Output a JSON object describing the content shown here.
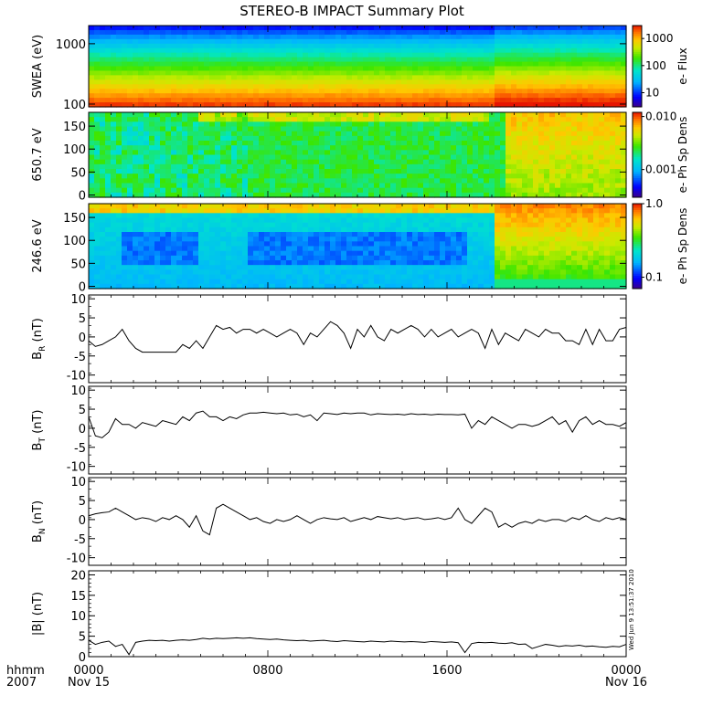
{
  "title": "STEREO-B IMPACT Summary Plot",
  "time_axis": {
    "corner_labels": [
      "hhmm",
      "2007"
    ],
    "ticks": [
      {
        "t": 0,
        "lines": [
          "0000",
          "Nov 15"
        ]
      },
      {
        "t": 8,
        "lines": [
          "0800"
        ]
      },
      {
        "t": 16,
        "lines": [
          "1600"
        ]
      },
      {
        "t": 24,
        "lines": [
          "0000",
          "Nov 16"
        ]
      }
    ],
    "range_hours": [
      0,
      24
    ]
  },
  "stamp": "Wed Jun  9 13:51:37 2010",
  "chart_data": [
    {
      "type": "heatmap",
      "id": "swea",
      "ylabel": "SWEA (eV)",
      "yscale": "log",
      "ylim": [
        90,
        2000
      ],
      "yticks": [
        {
          "v": 1000,
          "label": "1000"
        },
        {
          "v": 100,
          "label": "100"
        }
      ],
      "colorbar": {
        "label": "e- Flux",
        "scale": "log",
        "range": [
          3,
          3000
        ],
        "ticks": [
          {
            "v": 1000,
            "label": "1000"
          },
          {
            "v": 100,
            "label": "100"
          },
          {
            "v": 10,
            "label": "10"
          }
        ]
      }
    },
    {
      "type": "heatmap",
      "id": "pad650",
      "ylabel": "650.7 eV",
      "yscale": "linear",
      "ylim": [
        -5,
        180
      ],
      "yticks": [
        {
          "v": 0,
          "label": "0"
        },
        {
          "v": 50,
          "label": "50"
        },
        {
          "v": 100,
          "label": "100"
        },
        {
          "v": 150,
          "label": "150"
        }
      ],
      "colorbar": {
        "label": "e- Ph Sp Dens",
        "scale": "log",
        "range": [
          0.0003,
          0.012
        ],
        "ticks": [
          {
            "v": 0.01,
            "label": "0.010"
          },
          {
            "v": 0.001,
            "label": "0.001"
          }
        ]
      }
    },
    {
      "type": "heatmap",
      "id": "pad246",
      "ylabel": "246.6 eV",
      "yscale": "linear",
      "ylim": [
        -5,
        180
      ],
      "yticks": [
        {
          "v": 0,
          "label": "0"
        },
        {
          "v": 50,
          "label": "50"
        },
        {
          "v": 100,
          "label": "100"
        },
        {
          "v": 150,
          "label": "150"
        }
      ],
      "colorbar": {
        "label": "e- Ph Sp Dens",
        "scale": "log",
        "range": [
          0.07,
          1.0
        ],
        "ticks": [
          {
            "v": 1.0,
            "label": "1.0"
          },
          {
            "v": 0.1,
            "label": "0.1"
          }
        ]
      }
    },
    {
      "type": "line",
      "id": "br",
      "ylabel": "B",
      "ylabel_sub": "R",
      "ylabel_unit": "(nT)",
      "ylim": [
        -12,
        11
      ],
      "yticks": [
        {
          "v": 10,
          "label": "10"
        },
        {
          "v": 5,
          "label": "5"
        },
        {
          "v": 0,
          "label": "0"
        },
        {
          "v": -5,
          "label": "-5"
        },
        {
          "v": -10,
          "label": "-10"
        }
      ],
      "x": [
        0,
        0.3,
        0.6,
        0.9,
        1.2,
        1.5,
        1.8,
        2.1,
        2.4,
        2.7,
        3,
        3.3,
        3.6,
        3.9,
        4.2,
        4.5,
        4.8,
        5.1,
        5.4,
        5.7,
        6,
        6.3,
        6.6,
        6.9,
        7.2,
        7.5,
        7.8,
        8.1,
        8.4,
        8.7,
        9,
        9.3,
        9.6,
        9.9,
        10.2,
        10.5,
        10.8,
        11.1,
        11.4,
        11.7,
        12,
        12.3,
        12.6,
        12.9,
        13.2,
        13.5,
        13.8,
        14.1,
        14.4,
        14.7,
        15,
        15.3,
        15.6,
        15.9,
        16.2,
        16.5,
        16.8,
        17.1,
        17.4,
        17.7,
        18,
        18.3,
        18.6,
        18.9,
        19.2,
        19.5,
        19.8,
        20.1,
        20.4,
        20.7,
        21,
        21.3,
        21.6,
        21.9,
        22.2,
        22.5,
        22.8,
        23.1,
        23.4,
        23.7,
        24
      ],
      "y": [
        -1,
        -2.5,
        -2,
        -1,
        0,
        2,
        -1,
        -3,
        -4,
        -4,
        -4,
        -4,
        -4,
        -4,
        -2,
        -3,
        -1,
        -3,
        0,
        3,
        2,
        2.5,
        1,
        2,
        2,
        1,
        2,
        1,
        0,
        1,
        2,
        1,
        -2,
        1,
        0,
        2,
        4,
        3,
        1,
        -3,
        2,
        0,
        3,
        0,
        -1,
        2,
        1,
        2,
        3,
        2,
        0,
        2,
        0,
        1,
        2,
        0,
        1,
        2,
        1,
        -3,
        2,
        -2,
        1,
        0,
        -1,
        2,
        1,
        0,
        2,
        1,
        1,
        -1,
        -1,
        -2,
        2,
        -2,
        2,
        -1,
        -1,
        2,
        2.5
      ]
    },
    {
      "type": "line",
      "id": "bt",
      "ylabel": "B",
      "ylabel_sub": "T",
      "ylabel_unit": "(nT)",
      "ylim": [
        -12,
        11
      ],
      "yticks": [
        {
          "v": 10,
          "label": "10"
        },
        {
          "v": 5,
          "label": "5"
        },
        {
          "v": 0,
          "label": "0"
        },
        {
          "v": -5,
          "label": "-5"
        },
        {
          "v": -10,
          "label": "-10"
        }
      ],
      "x": [
        0,
        0.3,
        0.6,
        0.9,
        1.2,
        1.5,
        1.8,
        2.1,
        2.4,
        2.7,
        3,
        3.3,
        3.6,
        3.9,
        4.2,
        4.5,
        4.8,
        5.1,
        5.4,
        5.7,
        6,
        6.3,
        6.6,
        6.9,
        7.2,
        7.5,
        7.8,
        8.1,
        8.4,
        8.7,
        9,
        9.3,
        9.6,
        9.9,
        10.2,
        10.5,
        10.8,
        11.1,
        11.4,
        11.7,
        12,
        12.3,
        12.6,
        12.9,
        13.2,
        13.5,
        13.8,
        14.1,
        14.4,
        14.7,
        15,
        15.3,
        15.6,
        15.9,
        16.2,
        16.5,
        16.8,
        17.1,
        17.4,
        17.7,
        18,
        18.3,
        18.6,
        18.9,
        19.2,
        19.5,
        19.8,
        20.1,
        20.4,
        20.7,
        21,
        21.3,
        21.6,
        21.9,
        22.2,
        22.5,
        22.8,
        23.1,
        23.4,
        23.7,
        24
      ],
      "y": [
        3,
        -2,
        -2.5,
        -1,
        2.5,
        1,
        1,
        0,
        1.5,
        1,
        0.5,
        2,
        1.5,
        1,
        3,
        2,
        4,
        4.5,
        3,
        3,
        2,
        3,
        2.5,
        3.5,
        4,
        4,
        4.2,
        4,
        3.8,
        4,
        3.5,
        3.7,
        3,
        3.5,
        2,
        4,
        3.8,
        3.6,
        4,
        3.8,
        4,
        4,
        3.5,
        3.8,
        3.7,
        3.6,
        3.7,
        3.5,
        3.8,
        3.6,
        3.7,
        3.5,
        3.7,
        3.6,
        3.6,
        3.5,
        3.7,
        0,
        2,
        1,
        3,
        2,
        1,
        0,
        1,
        1,
        0.5,
        1,
        2,
        3,
        1,
        2,
        -1,
        2,
        3,
        1,
        2,
        1,
        1,
        0.5,
        1.5
      ]
    },
    {
      "type": "line",
      "id": "bn",
      "ylabel": "B",
      "ylabel_sub": "N",
      "ylabel_unit": "(nT)",
      "ylim": [
        -12,
        11
      ],
      "yticks": [
        {
          "v": 10,
          "label": "10"
        },
        {
          "v": 5,
          "label": "5"
        },
        {
          "v": 0,
          "label": "0"
        },
        {
          "v": -5,
          "label": "-5"
        },
        {
          "v": -10,
          "label": "-10"
        }
      ],
      "x": [
        0,
        0.3,
        0.6,
        0.9,
        1.2,
        1.5,
        1.8,
        2.1,
        2.4,
        2.7,
        3,
        3.3,
        3.6,
        3.9,
        4.2,
        4.5,
        4.8,
        5.1,
        5.4,
        5.7,
        6,
        6.3,
        6.6,
        6.9,
        7.2,
        7.5,
        7.8,
        8.1,
        8.4,
        8.7,
        9,
        9.3,
        9.6,
        9.9,
        10.2,
        10.5,
        10.8,
        11.1,
        11.4,
        11.7,
        12,
        12.3,
        12.6,
        12.9,
        13.2,
        13.5,
        13.8,
        14.1,
        14.4,
        14.7,
        15,
        15.3,
        15.6,
        15.9,
        16.2,
        16.5,
        16.8,
        17.1,
        17.4,
        17.7,
        18,
        18.3,
        18.6,
        18.9,
        19.2,
        19.5,
        19.8,
        20.1,
        20.4,
        20.7,
        21,
        21.3,
        21.6,
        21.9,
        22.2,
        22.5,
        22.8,
        23.1,
        23.4,
        23.7,
        24
      ],
      "y": [
        1,
        1.5,
        1.8,
        2,
        3,
        2,
        1,
        0,
        0.5,
        0.2,
        -0.5,
        0.5,
        0,
        1,
        0,
        -2,
        1,
        -3,
        -4,
        3,
        4,
        3,
        2,
        1,
        0,
        0.5,
        -0.5,
        -1,
        0,
        -0.5,
        0,
        1,
        0,
        -1,
        0,
        0.5,
        0.2,
        0,
        0.5,
        -0.5,
        0,
        0.5,
        0,
        0.8,
        0.5,
        0.2,
        0.5,
        0,
        0.3,
        0.5,
        0,
        0.2,
        0.5,
        0,
        0.5,
        3,
        0,
        -1,
        1,
        3,
        2,
        -2,
        -1,
        -2,
        -1,
        -0.5,
        -1,
        0,
        -0.5,
        0,
        0,
        -0.5,
        0.5,
        0,
        1,
        0,
        -0.5,
        0.5,
        0,
        0.5,
        0
      ]
    },
    {
      "type": "line",
      "id": "bmag",
      "ylabel": "|B| (nT)",
      "ylim": [
        0,
        21
      ],
      "yticks": [
        {
          "v": 20,
          "label": "20"
        },
        {
          "v": 15,
          "label": "15"
        },
        {
          "v": 10,
          "label": "10"
        },
        {
          "v": 5,
          "label": "5"
        },
        {
          "v": 0,
          "label": "0"
        }
      ],
      "x": [
        0,
        0.3,
        0.6,
        0.9,
        1.2,
        1.5,
        1.8,
        2.1,
        2.4,
        2.7,
        3,
        3.3,
        3.6,
        3.9,
        4.2,
        4.5,
        4.8,
        5.1,
        5.4,
        5.7,
        6,
        6.3,
        6.6,
        6.9,
        7.2,
        7.5,
        7.8,
        8.1,
        8.4,
        8.7,
        9,
        9.3,
        9.6,
        9.9,
        10.2,
        10.5,
        10.8,
        11.1,
        11.4,
        11.7,
        12,
        12.3,
        12.6,
        12.9,
        13.2,
        13.5,
        13.8,
        14.1,
        14.4,
        14.7,
        15,
        15.3,
        15.6,
        15.9,
        16.2,
        16.5,
        16.8,
        17.1,
        17.4,
        17.7,
        18,
        18.3,
        18.6,
        18.9,
        19.2,
        19.5,
        19.8,
        20.1,
        20.4,
        20.7,
        21,
        21.3,
        21.6,
        21.9,
        22.2,
        22.5,
        22.8,
        23.1,
        23.4,
        23.7,
        24
      ],
      "y": [
        4,
        3,
        3.5,
        3.8,
        2.5,
        3,
        0.5,
        3.5,
        3.8,
        4,
        3.9,
        4,
        3.8,
        4,
        4.1,
        4,
        4.2,
        4.5,
        4.3,
        4.5,
        4.4,
        4.5,
        4.6,
        4.5,
        4.6,
        4.4,
        4.3,
        4.2,
        4.3,
        4.1,
        4,
        3.9,
        4,
        3.8,
        3.9,
        4,
        3.8,
        3.7,
        3.9,
        3.8,
        3.7,
        3.6,
        3.8,
        3.7,
        3.6,
        3.8,
        3.7,
        3.6,
        3.7,
        3.6,
        3.5,
        3.7,
        3.6,
        3.5,
        3.6,
        3.4,
        1,
        3.2,
        3.5,
        3.4,
        3.5,
        3.3,
        3.2,
        3.4,
        3,
        3.1,
        2,
        2.5,
        3,
        2.8,
        2.5,
        2.7,
        2.6,
        2.8,
        2.5,
        2.6,
        2.4,
        2.3,
        2.5,
        2.4,
        3
      ]
    }
  ]
}
